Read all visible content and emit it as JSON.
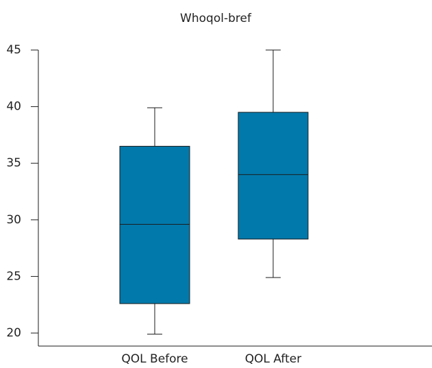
{
  "chart_data": {
    "type": "box",
    "title": "Whoqol-bref",
    "xlabel": "",
    "ylabel": "",
    "categories": [
      "QOL Before",
      "QOL After"
    ],
    "ylim": [
      19.5,
      45
    ],
    "yticks": [
      20,
      25,
      30,
      35,
      40,
      45
    ],
    "grid": false,
    "boxes": [
      {
        "category": "QOL Before",
        "min": 19.9,
        "q1": 22.6,
        "median": 29.6,
        "q3": 36.5,
        "max": 39.9
      },
      {
        "category": "QOL After",
        "min": 24.9,
        "q1": 28.3,
        "median": 34.0,
        "q3": 39.5,
        "max": 45.0
      }
    ],
    "colors": {
      "box_fill": "#0279ab",
      "stroke": "#1a1a1a",
      "text": "#222222"
    }
  }
}
